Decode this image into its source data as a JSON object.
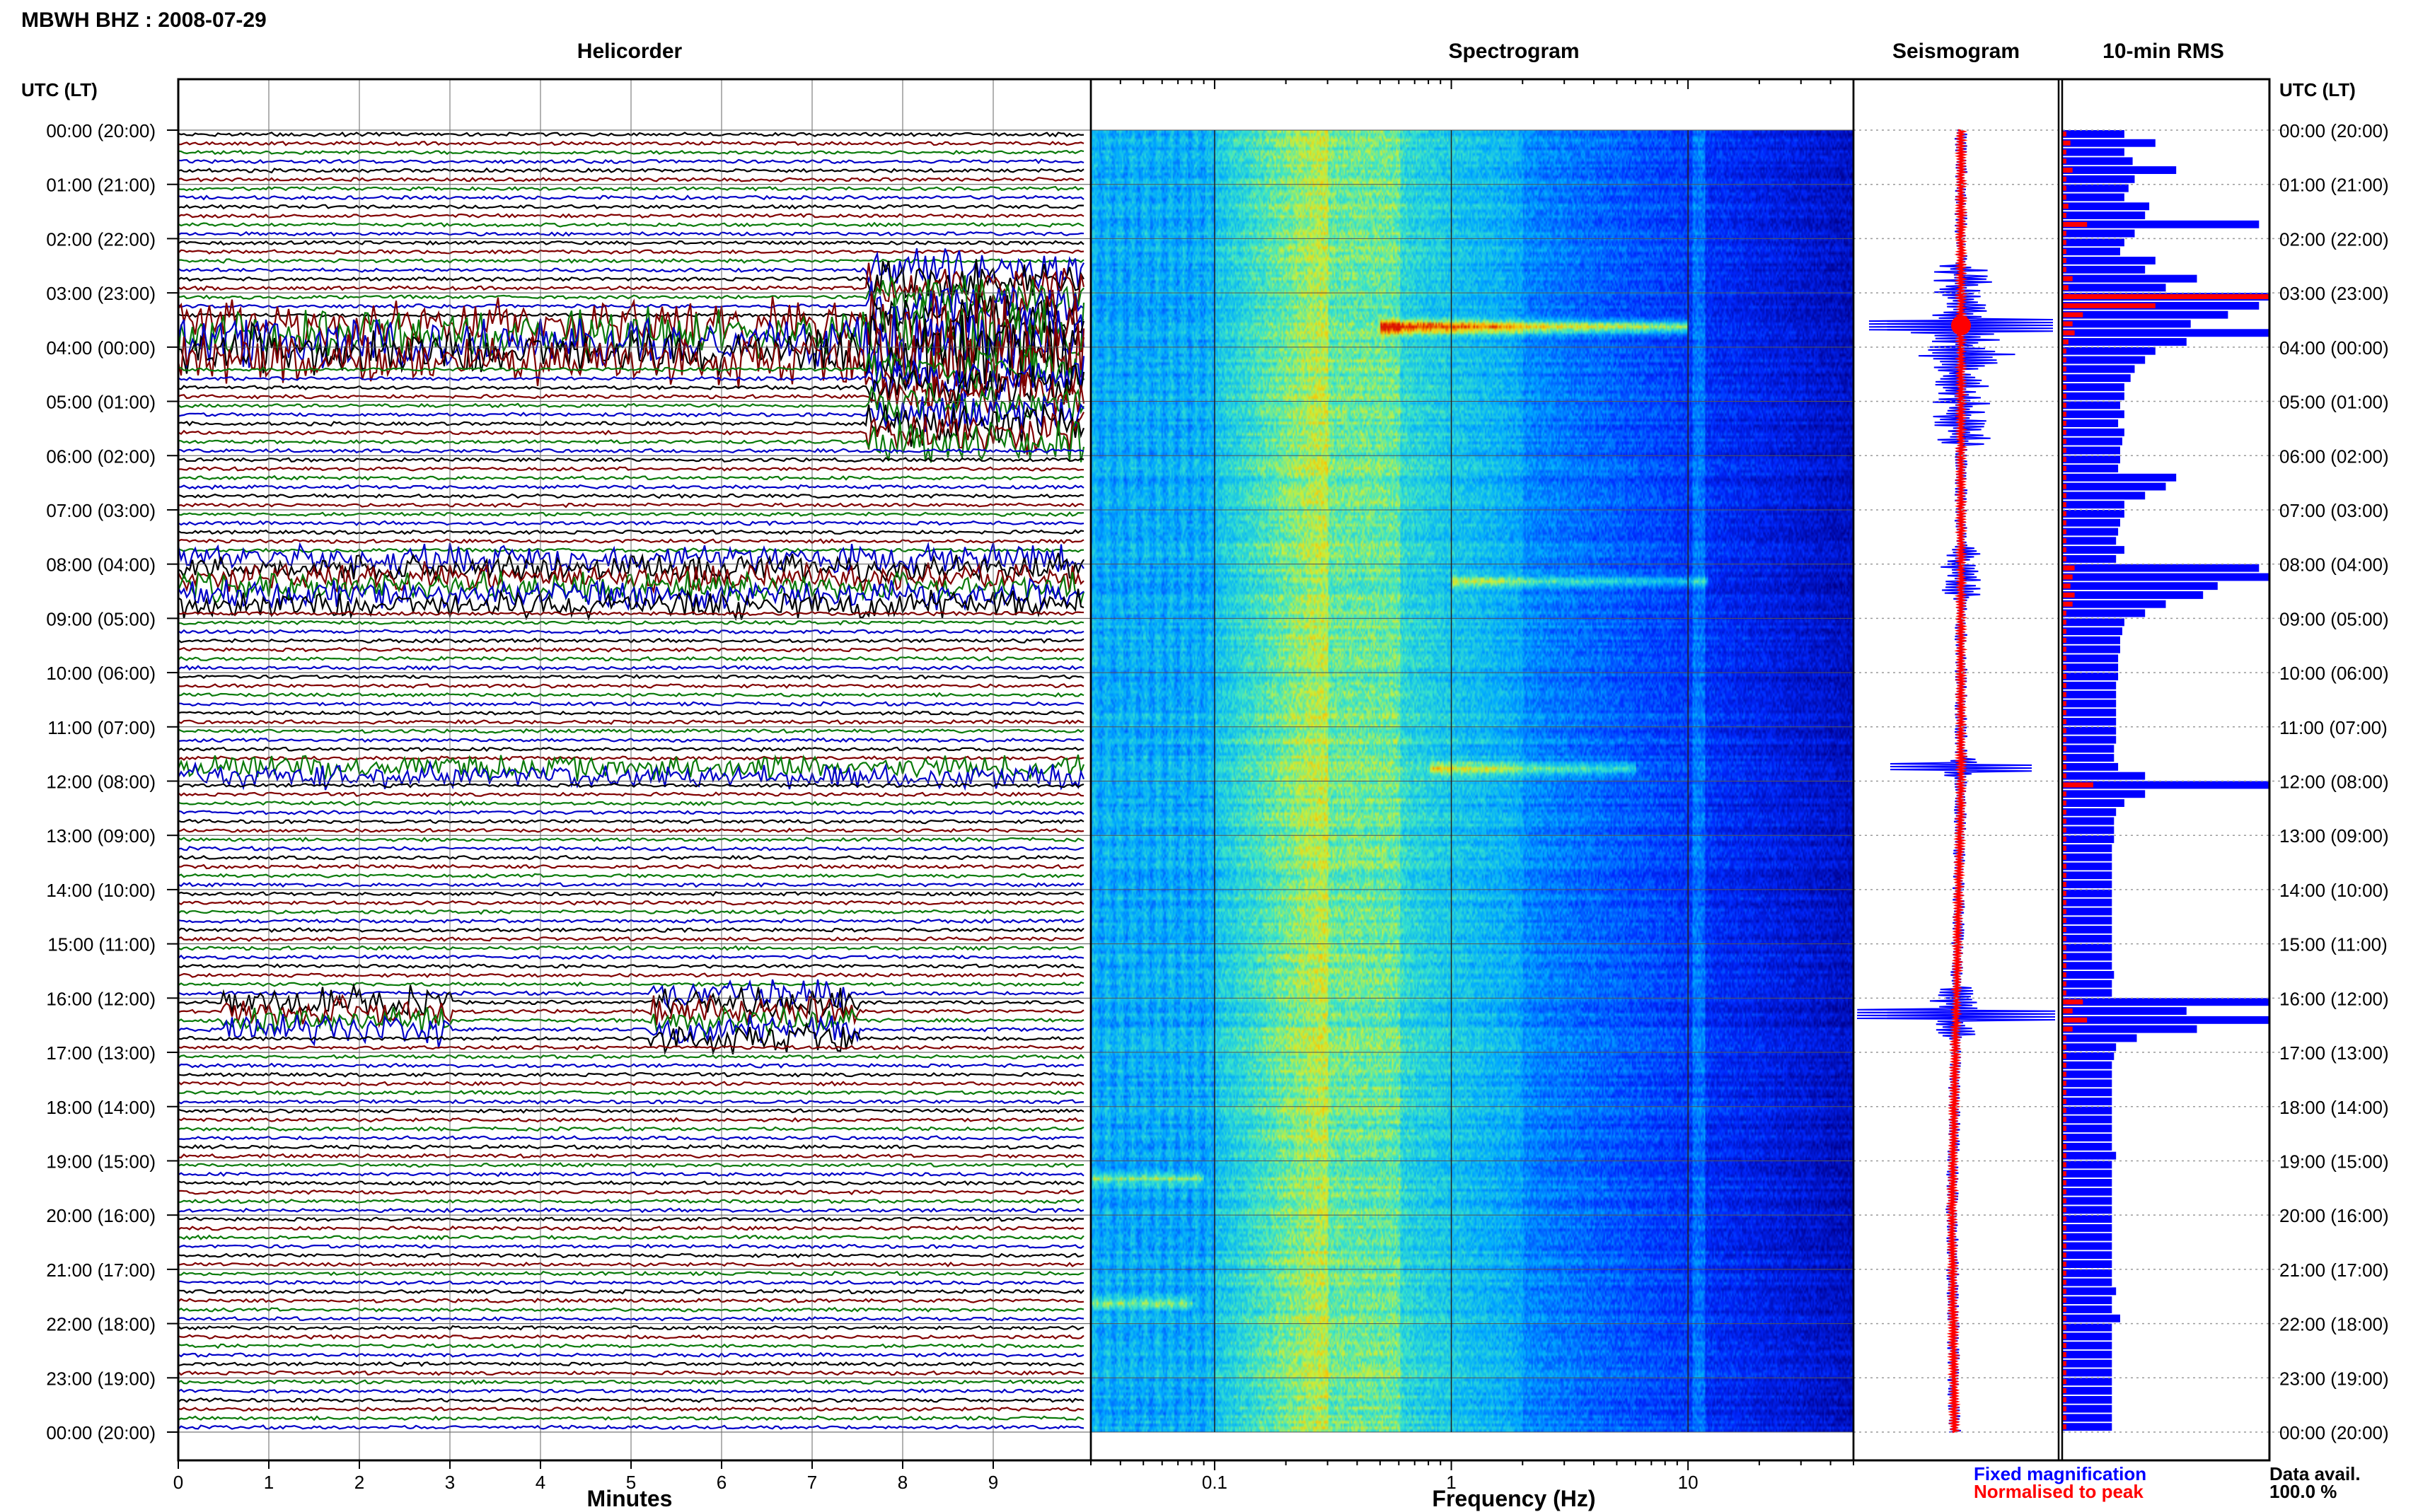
{
  "header": {
    "title": "MBWH BHZ : 2008-07-29"
  },
  "colors": {
    "trace1": "#000000",
    "trace2": "#800000",
    "trace3": "#0a7a0a",
    "trace4": "#0000c8",
    "fixed": "#0000ff",
    "normalised": "#ff0000"
  },
  "chart_data": [
    {
      "type": "line",
      "title": "Helicorder",
      "xlabel": "Minutes",
      "ylabel": "UTC (LT)",
      "xlim": [
        0,
        10
      ],
      "x_ticks": [
        "0",
        "1",
        "2",
        "3",
        "4",
        "5",
        "6",
        "7",
        "8",
        "9"
      ],
      "row_labels": [
        "00:00 (20:00)",
        "01:00 (21:00)",
        "02:00 (22:00)",
        "03:00 (23:00)",
        "04:00 (00:00)",
        "05:00 (01:00)",
        "06:00 (02:00)",
        "07:00 (03:00)",
        "08:00 (04:00)",
        "09:00 (05:00)",
        "10:00 (06:00)",
        "11:00 (07:00)",
        "12:00 (08:00)",
        "13:00 (09:00)",
        "14:00 (10:00)",
        "15:00 (11:00)",
        "16:00 (12:00)",
        "17:00 (13:00)",
        "18:00 (14:00)",
        "19:00 (15:00)",
        "20:00 (16:00)",
        "21:00 (17:00)",
        "22:00 (18:00)",
        "23:00 (19:00)",
        "00:00 (20:00)"
      ],
      "right_axis_label": "UTC (LT)",
      "trace_count": 144,
      "events": [
        {
          "start_hour": 3.4,
          "end_hour": 4.3,
          "from_min": 0.0,
          "to_min": 10.0,
          "level": 1.0
        },
        {
          "start_hour": 2.5,
          "end_hour": 5.8,
          "from_min": 7.6,
          "to_min": 10.0,
          "level": 0.9
        },
        {
          "start_hour": 7.7,
          "end_hour": 8.7,
          "from_min": 0.0,
          "to_min": 10.0,
          "level": 0.55
        },
        {
          "start_hour": 11.6,
          "end_hour": 11.9,
          "from_min": 0.0,
          "to_min": 10.0,
          "level": 0.45
        },
        {
          "start_hour": 16.0,
          "end_hour": 16.5,
          "from_min": 0.5,
          "to_min": 3.0,
          "level": 0.6
        },
        {
          "start_hour": 15.8,
          "end_hour": 16.7,
          "from_min": 5.2,
          "to_min": 7.5,
          "level": 0.55
        }
      ]
    },
    {
      "type": "heatmap",
      "title": "Spectrogram",
      "xlabel": "Frequency (Hz)",
      "xscale": "log",
      "xlim": [
        0.03,
        50
      ],
      "x_ticks": [
        "0.1",
        "1",
        "10"
      ],
      "bright_bands": [
        {
          "hour": 3.6,
          "from_hz": 0.5,
          "to_hz": 10,
          "level": 1.0
        },
        {
          "hour": 8.3,
          "from_hz": 1.0,
          "to_hz": 12,
          "level": 0.6
        },
        {
          "hour": 11.75,
          "from_hz": 0.8,
          "to_hz": 6,
          "level": 0.55
        },
        {
          "hour": 19.3,
          "from_hz": 0.03,
          "to_hz": 0.09,
          "level": 0.5
        },
        {
          "hour": 21.6,
          "from_hz": 0.03,
          "to_hz": 0.08,
          "level": 0.5
        }
      ]
    },
    {
      "type": "line",
      "title": "Seismogram",
      "legend": [
        "Fixed magnification",
        "Normalised to peak"
      ]
    },
    {
      "type": "bar",
      "title": "10-min RMS",
      "orientation": "horizontal",
      "notes": [
        "Data avail.",
        "100.0 %"
      ],
      "rms_fixed": [
        0.3,
        0.45,
        0.3,
        0.34,
        0.55,
        0.35,
        0.32,
        0.3,
        0.42,
        0.4,
        0.95,
        0.35,
        0.3,
        0.28,
        0.45,
        0.4,
        0.65,
        0.5,
        1.0,
        0.95,
        0.8,
        0.62,
        1.0,
        0.6,
        0.45,
        0.4,
        0.35,
        0.33,
        0.3,
        0.3,
        0.28,
        0.3,
        0.27,
        0.3,
        0.29,
        0.28,
        0.28,
        0.27,
        0.55,
        0.5,
        0.4,
        0.3,
        0.3,
        0.28,
        0.27,
        0.26,
        0.3,
        0.26,
        0.95,
        1.0,
        0.75,
        0.68,
        0.5,
        0.4,
        0.3,
        0.29,
        0.28,
        0.28,
        0.27,
        0.27,
        0.27,
        0.26,
        0.26,
        0.26,
        0.26,
        0.26,
        0.26,
        0.26,
        0.25,
        0.25,
        0.27,
        0.4,
        1.0,
        0.4,
        0.3,
        0.26,
        0.25,
        0.25,
        0.25,
        0.24,
        0.24,
        0.24,
        0.24,
        0.24,
        0.24,
        0.24,
        0.24,
        0.24,
        0.24,
        0.24,
        0.24,
        0.24,
        0.24,
        0.25,
        0.24,
        0.24,
        1.0,
        0.6,
        1.0,
        0.65,
        0.36,
        0.26,
        0.25,
        0.24,
        0.24,
        0.24,
        0.24,
        0.24,
        0.24,
        0.24,
        0.24,
        0.24,
        0.24,
        0.26,
        0.24,
        0.24,
        0.24,
        0.24,
        0.24,
        0.24,
        0.24,
        0.24,
        0.24,
        0.24,
        0.24,
        0.24,
        0.24,
        0.24,
        0.26,
        0.24,
        0.24,
        0.28,
        0.24,
        0.24,
        0.24,
        0.24,
        0.24,
        0.24,
        0.24,
        0.24,
        0.24,
        0.24,
        0.24,
        0.24
      ],
      "rms_normalised": [
        0.02,
        0.04,
        0.02,
        0.02,
        0.05,
        0.02,
        0.02,
        0.02,
        0.03,
        0.02,
        0.12,
        0.02,
        0.02,
        0.02,
        0.02,
        0.02,
        0.05,
        0.03,
        1.0,
        0.45,
        0.1,
        0.05,
        0.06,
        0.03,
        0.02,
        0.02,
        0.02,
        0.02,
        0.02,
        0.02,
        0.02,
        0.02,
        0.02,
        0.02,
        0.02,
        0.02,
        0.02,
        0.02,
        0.02,
        0.02,
        0.02,
        0.02,
        0.02,
        0.02,
        0.02,
        0.02,
        0.02,
        0.02,
        0.06,
        0.05,
        0.04,
        0.06,
        0.05,
        0.02,
        0.02,
        0.02,
        0.02,
        0.02,
        0.02,
        0.02,
        0.02,
        0.02,
        0.02,
        0.02,
        0.02,
        0.02,
        0.02,
        0.02,
        0.02,
        0.02,
        0.02,
        0.02,
        0.15,
        0.02,
        0.02,
        0.02,
        0.02,
        0.02,
        0.02,
        0.02,
        0.02,
        0.02,
        0.02,
        0.02,
        0.02,
        0.02,
        0.02,
        0.02,
        0.02,
        0.02,
        0.02,
        0.02,
        0.02,
        0.02,
        0.02,
        0.02,
        0.1,
        0.05,
        0.12,
        0.05,
        0.02,
        0.02,
        0.02,
        0.02,
        0.02,
        0.02,
        0.02,
        0.02,
        0.02,
        0.02,
        0.02,
        0.02,
        0.02,
        0.02,
        0.02,
        0.02,
        0.02,
        0.02,
        0.02,
        0.02,
        0.02,
        0.02,
        0.02,
        0.02,
        0.02,
        0.02,
        0.02,
        0.02,
        0.02,
        0.02,
        0.02,
        0.02,
        0.02,
        0.02,
        0.02,
        0.02,
        0.02,
        0.02,
        0.02,
        0.02,
        0.02,
        0.02,
        0.02,
        0.02
      ]
    }
  ]
}
